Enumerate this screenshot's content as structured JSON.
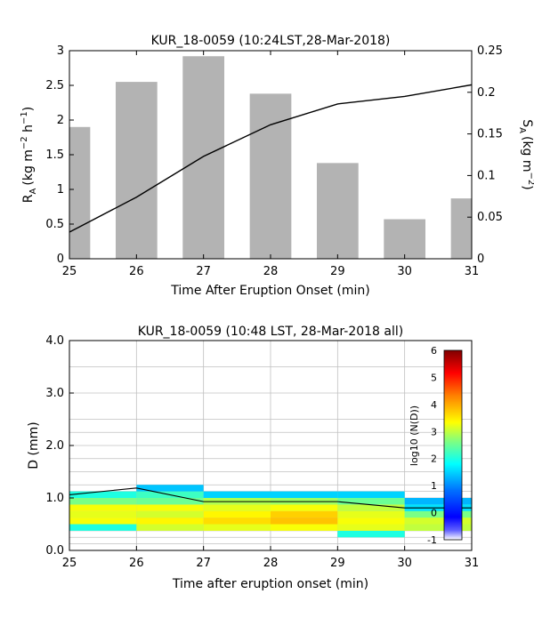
{
  "chart_data": [
    {
      "type": "bar",
      "title": "KUR_18-0059 (10:24LST,28-Mar-2018)",
      "xlabel": "Time After Eruption Onset (min)",
      "ylabel_main": "R",
      "ylabel_sub": "A",
      "ylabel_units": "(kg m",
      "ylabel_exp1": "−2",
      "ylabel_h": " h",
      "ylabel_exp2": "−1",
      "ylabel_close": ")",
      "y2label_main": "S",
      "y2label_sub": "A",
      "y2label_units": "(kg m",
      "y2label_exp": "−2",
      "y2label_close": ")",
      "xlim": [
        25,
        31
      ],
      "ylim": [
        0,
        3
      ],
      "y2lim": [
        0,
        0.25
      ],
      "xticks": [
        "25",
        "26",
        "27",
        "28",
        "29",
        "30",
        "31"
      ],
      "yticks": [
        "0",
        "0.5",
        "1",
        "1.5",
        "2",
        "2.5",
        "3"
      ],
      "y2ticks": [
        "0",
        "0.05",
        "0.1",
        "0.15",
        "0.2",
        "0.25"
      ],
      "bar_color": "#b3b3b3",
      "line_color": "#000000",
      "bars": {
        "x": [
          25,
          26,
          27,
          28,
          29,
          30,
          31
        ],
        "values": [
          1.9,
          2.55,
          2.92,
          2.38,
          1.38,
          0.57,
          0.87
        ]
      },
      "line": {
        "x": [
          25,
          26,
          27,
          28,
          29,
          30,
          31
        ],
        "values": [
          0.032,
          0.074,
          0.123,
          0.161,
          0.186,
          0.195,
          0.209
        ]
      }
    },
    {
      "type": "heatmap",
      "title": "KUR_18-0059 (10:48 LST, 28-Mar-2018 all)",
      "xlabel": "Time after eruption onset (min)",
      "ylabel": "D (mm)",
      "colorbar_label": "log10 (N(D))",
      "xlim": [
        25,
        31
      ],
      "ylim": [
        0,
        4
      ],
      "clim": [
        -1,
        6
      ],
      "xticks": [
        "25",
        "26",
        "27",
        "28",
        "29",
        "30",
        "31"
      ],
      "yticks": [
        "0.0",
        "1.0",
        "2.0",
        "3.0",
        "4.0"
      ],
      "cticks": [
        "-1",
        "0",
        "1",
        "2",
        "3",
        "4",
        "5",
        "6"
      ],
      "grid": true,
      "grid_color": "#c0c0c0",
      "d_grid_lines": [
        0.125,
        0.25,
        0.375,
        0.5,
        0.625,
        0.75,
        0.875,
        1.0,
        1.125,
        1.25,
        1.5,
        1.75,
        2.0,
        2.25,
        2.5,
        3.0,
        3.5
      ],
      "time_bins": [
        25,
        26,
        27,
        28,
        29,
        30,
        31
      ],
      "d_bins": [
        0.375,
        0.5,
        0.625,
        0.75,
        0.875,
        1.0,
        1.125,
        1.25
      ],
      "values": [
        [
          2.2,
          3.1,
          3.2,
          3.1,
          2.6,
          2.3,
          1.5
        ],
        [
          3.0,
          3.8,
          3.6,
          3.2,
          2.6,
          2.0,
          1.4
        ],
        [
          2.3,
          3.4,
          3.2,
          3.0,
          2.5,
          2.0,
          null
        ],
        [
          null,
          1.6,
          1.5,
          1.5,
          1.5,
          1.4,
          null
        ],
        [
          null,
          null,
          null,
          null,
          null,
          null,
          null
        ]
      ],
      "cells": [
        {
          "t": 25,
          "d0": 0.375,
          "d1": 0.5,
          "v": 2.0
        },
        {
          "t": 25,
          "d0": 0.5,
          "d1": 0.625,
          "v": 3.3
        },
        {
          "t": 25,
          "d0": 0.625,
          "d1": 0.75,
          "v": 3.2
        },
        {
          "t": 25,
          "d0": 0.75,
          "d1": 0.875,
          "v": 3.3
        },
        {
          "t": 25,
          "d0": 0.875,
          "d1": 1.0,
          "v": 2.6
        },
        {
          "t": 25,
          "d0": 1.0,
          "d1": 1.125,
          "v": 2.0
        },
        {
          "t": 26,
          "d0": 0.375,
          "d1": 0.5,
          "v": 3.1
        },
        {
          "t": 26,
          "d0": 0.5,
          "d1": 0.625,
          "v": 3.4
        },
        {
          "t": 26,
          "d0": 0.625,
          "d1": 0.75,
          "v": 3.1
        },
        {
          "t": 26,
          "d0": 0.75,
          "d1": 0.875,
          "v": 3.3
        },
        {
          "t": 26,
          "d0": 0.875,
          "d1": 1.0,
          "v": 2.5
        },
        {
          "t": 26,
          "d0": 1.0,
          "d1": 1.125,
          "v": 2.2
        },
        {
          "t": 26,
          "d0": 1.125,
          "d1": 1.25,
          "v": 1.4
        },
        {
          "t": 27,
          "d0": 0.375,
          "d1": 0.5,
          "v": 3.2
        },
        {
          "t": 27,
          "d0": 0.5,
          "d1": 0.625,
          "v": 3.6
        },
        {
          "t": 27,
          "d0": 0.625,
          "d1": 0.75,
          "v": 3.4
        },
        {
          "t": 27,
          "d0": 0.75,
          "d1": 0.875,
          "v": 3.2
        },
        {
          "t": 27,
          "d0": 0.875,
          "d1": 1.0,
          "v": 2.9
        },
        {
          "t": 27,
          "d0": 1.0,
          "d1": 1.125,
          "v": 1.5
        },
        {
          "t": 28,
          "d0": 0.375,
          "d1": 0.5,
          "v": 3.3
        },
        {
          "t": 28,
          "d0": 0.5,
          "d1": 0.625,
          "v": 3.8
        },
        {
          "t": 28,
          "d0": 0.625,
          "d1": 0.75,
          "v": 3.7
        },
        {
          "t": 28,
          "d0": 0.75,
          "d1": 0.875,
          "v": 3.3
        },
        {
          "t": 28,
          "d0": 0.875,
          "d1": 1.0,
          "v": 2.8
        },
        {
          "t": 28,
          "d0": 1.0,
          "d1": 1.125,
          "v": 1.5
        },
        {
          "t": 29,
          "d0": 0.25,
          "d1": 0.375,
          "v": 2.0
        },
        {
          "t": 29,
          "d0": 0.375,
          "d1": 0.5,
          "v": 3.2
        },
        {
          "t": 29,
          "d0": 0.5,
          "d1": 0.625,
          "v": 3.3
        },
        {
          "t": 29,
          "d0": 0.625,
          "d1": 0.75,
          "v": 3.2
        },
        {
          "t": 29,
          "d0": 0.75,
          "d1": 0.875,
          "v": 3.0
        },
        {
          "t": 29,
          "d0": 0.875,
          "d1": 1.0,
          "v": 2.5
        },
        {
          "t": 29,
          "d0": 1.0,
          "d1": 1.125,
          "v": 1.5
        },
        {
          "t": 30,
          "d0": 0.375,
          "d1": 0.5,
          "v": 3.0
        },
        {
          "t": 30,
          "d0": 0.5,
          "d1": 0.625,
          "v": 3.2
        },
        {
          "t": 30,
          "d0": 0.625,
          "d1": 0.75,
          "v": 2.9
        },
        {
          "t": 30,
          "d0": 0.75,
          "d1": 0.875,
          "v": 2.3
        },
        {
          "t": 30,
          "d0": 0.875,
          "d1": 1.0,
          "v": 1.3
        }
      ],
      "line": {
        "x": [
          25,
          26,
          27,
          28,
          29,
          30,
          31
        ],
        "values": [
          1.06,
          1.19,
          0.93,
          0.93,
          0.93,
          0.81,
          0.81
        ]
      }
    }
  ]
}
